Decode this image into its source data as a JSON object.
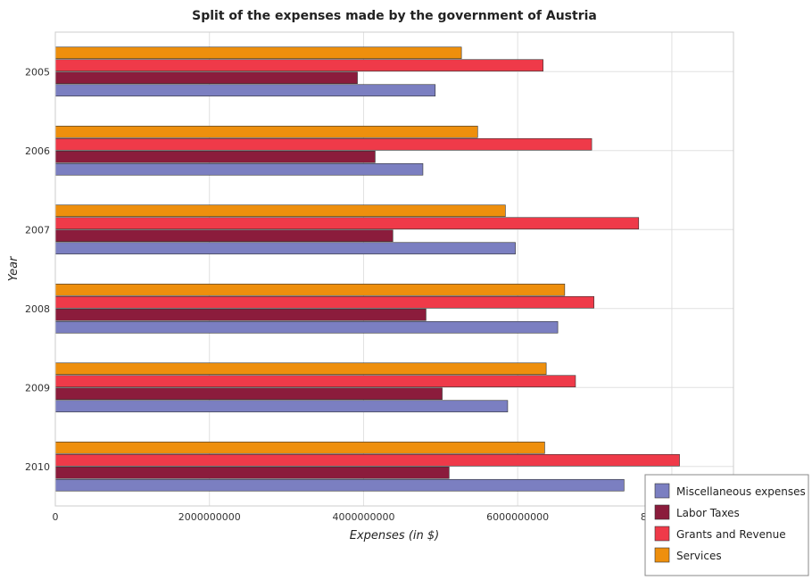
{
  "title": "Split of the expenses made by the government of Austria",
  "chart_data": {
    "type": "bar",
    "orientation": "horizontal",
    "title": "Split of the expenses made by the government of Austria",
    "xlabel": "Expenses (in $)",
    "ylabel": "Year",
    "categories": [
      "2005",
      "2006",
      "2007",
      "2008",
      "2009",
      "2010"
    ],
    "xlim": [
      0,
      8800000000
    ],
    "xticks": [
      0,
      2000000000,
      4000000000,
      6000000000,
      8000000000
    ],
    "xtick_labels": [
      "0",
      "2000000000",
      "4000000000",
      "6000000000",
      "8000000000"
    ],
    "grid": true,
    "legend_position": "bottom-right",
    "series": [
      {
        "name": "Miscellaneous expenses",
        "color": "#7b7fc1",
        "values": [
          4930000000,
          4770000000,
          5970000000,
          6520000000,
          5870000000,
          7380000000
        ]
      },
      {
        "name": "Labor Taxes",
        "color": "#8b1c3c",
        "values": [
          3920000000,
          4150000000,
          4380000000,
          4810000000,
          5020000000,
          5110000000
        ]
      },
      {
        "name": "Grants and Revenue",
        "color": "#ef3a49",
        "values": [
          6330000000,
          6960000000,
          7570000000,
          6990000000,
          6750000000,
          8100000000
        ]
      },
      {
        "name": "Services",
        "color": "#ee8f0d",
        "values": [
          5270000000,
          5480000000,
          5840000000,
          6610000000,
          6370000000,
          6350000000
        ]
      }
    ]
  }
}
